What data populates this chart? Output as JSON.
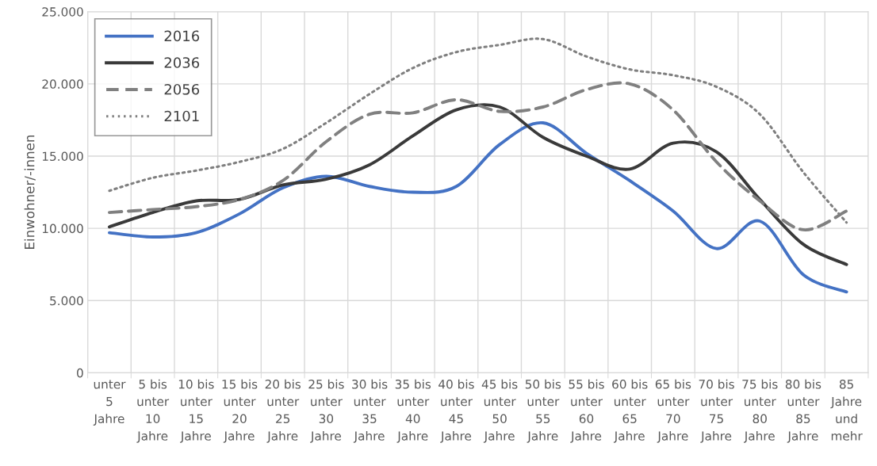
{
  "chart_data": {
    "type": "line",
    "ylabel": "Einwohner/-innen",
    "categories": [
      "unter\n5\nJahre",
      "5 bis\nunter\n10\nJahre",
      "10 bis\nunter\n15\nJahre",
      "15 bis\nunter\n20\nJahre",
      "20 bis\nunter\n25\nJahre",
      "25 bis\nunter\n30\nJahre",
      "30 bis\nunter\n35\nJahre",
      "35 bis\nunter\n40\nJahre",
      "40 bis\nunter\n45\nJahre",
      "45 bis\nunter\n50\nJahre",
      "50 bis\nunter\n55\nJahre",
      "55 bis\nunter\n60\nJahre",
      "60 bis\nunter\n65\nJahre",
      "65 bis\nunter\n70\nJahre",
      "70 bis\nunter\n75\nJahre",
      "75 bis\nunter\n80\nJahre",
      "80 bis\nunter\n85\nJahre",
      "85\nJahre\nund\nmehr"
    ],
    "series": [
      {
        "name": "2016",
        "color": "#4472c4",
        "line_style": "solid",
        "values": [
          9700,
          9400,
          9700,
          11000,
          12800,
          13600,
          12900,
          12500,
          12900,
          15800,
          17300,
          15200,
          13300,
          11200,
          8600,
          10500,
          6800,
          5600
        ]
      },
      {
        "name": "2036",
        "color": "#3a3a3a",
        "line_style": "solid",
        "values": [
          10100,
          11100,
          11900,
          12000,
          13000,
          13400,
          14400,
          16400,
          18200,
          18400,
          16300,
          15000,
          14100,
          15900,
          15300,
          12000,
          8900,
          7500
        ]
      },
      {
        "name": "2056",
        "color": "#808080",
        "line_style": "dashed",
        "values": [
          11100,
          11300,
          11500,
          12000,
          13300,
          16000,
          17900,
          18000,
          18900,
          18100,
          18400,
          19600,
          20000,
          18200,
          14600,
          11900,
          9900,
          11200
        ]
      },
      {
        "name": "2101",
        "color": "#7f7f7f",
        "line_style": "dotted",
        "values": [
          12600,
          13500,
          14000,
          14600,
          15500,
          17300,
          19300,
          21100,
          22200,
          22700,
          23100,
          21900,
          21000,
          20600,
          19800,
          17900,
          13900,
          10400
        ]
      }
    ],
    "ylim": [
      0,
      25000
    ],
    "yticks": [
      0,
      {
        "value": 5000,
        "label": "5.000"
      },
      {
        "value": 10000,
        "label": "10.000"
      },
      {
        "value": 15000,
        "label": "15.000"
      },
      {
        "value": 20000,
        "label": "20.000"
      },
      {
        "value": 25000,
        "label": "25.000"
      }
    ],
    "grid": true,
    "legend": "top left"
  }
}
